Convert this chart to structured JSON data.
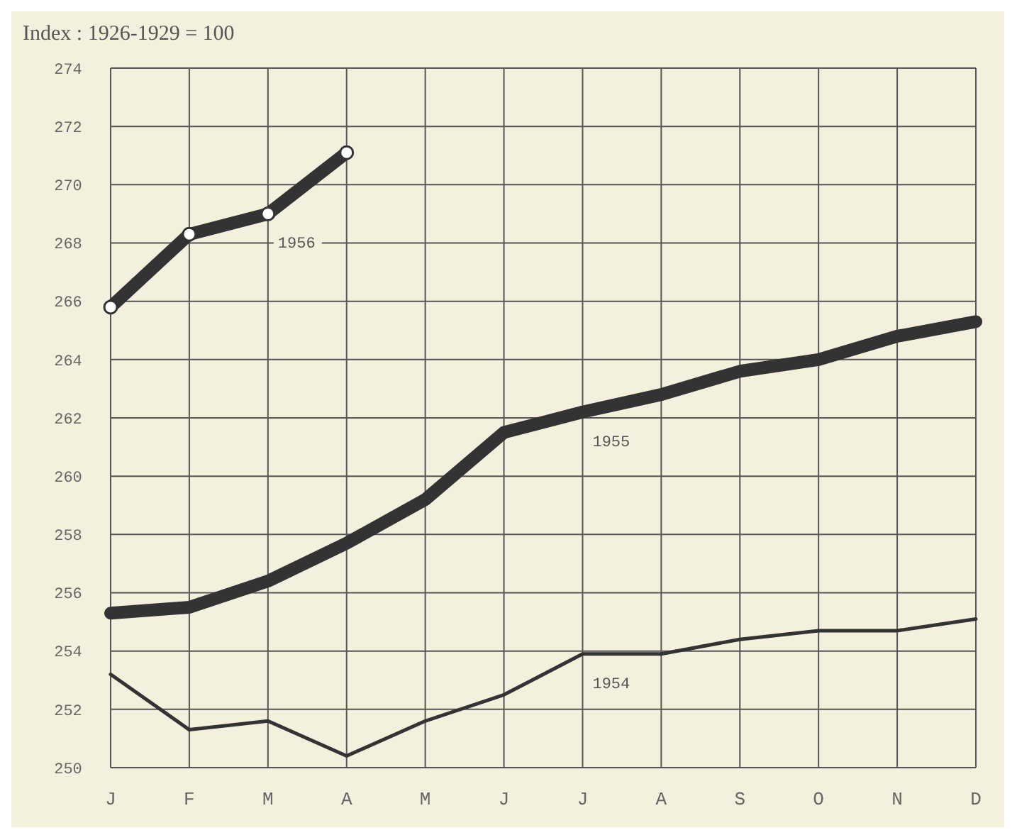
{
  "chart_data": {
    "type": "line",
    "ylabel": "Index : 1926-1929 = 100",
    "categories": [
      "J",
      "F",
      "M",
      "A",
      "M",
      "J",
      "J",
      "A",
      "S",
      "O",
      "N",
      "D"
    ],
    "series": [
      {
        "name": "1956",
        "color": "#333333",
        "marker": "circle",
        "values": [
          265.8,
          268.3,
          269.0,
          271.1,
          null,
          null,
          null,
          null,
          null,
          null,
          null,
          null
        ]
      },
      {
        "name": "1955",
        "color": "#333333",
        "values": [
          255.3,
          255.5,
          256.4,
          257.7,
          259.2,
          261.5,
          262.2,
          262.8,
          263.6,
          264.0,
          264.8,
          265.3
        ]
      },
      {
        "name": "1954",
        "color": "#333333",
        "values": [
          253.2,
          251.3,
          251.6,
          250.4,
          251.6,
          252.5,
          253.9,
          253.9,
          254.4,
          254.7,
          254.7,
          255.1
        ]
      }
    ],
    "ylim": [
      250,
      274
    ],
    "yticks": [
      250,
      252,
      254,
      256,
      258,
      260,
      262,
      264,
      266,
      268,
      270,
      272,
      274
    ],
    "grid": true
  }
}
